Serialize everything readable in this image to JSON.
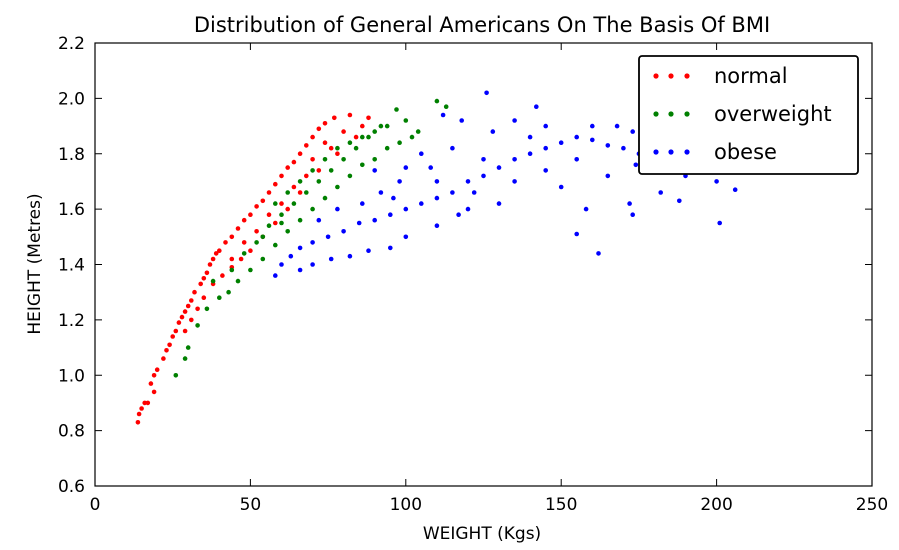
{
  "chart_data": {
    "type": "scatter",
    "title": "Distribution of General Americans On The Basis Of BMI",
    "xlabel": "WEIGHT (Kgs)",
    "ylabel": "HEIGHT (Metres)",
    "xlim": [
      0,
      250
    ],
    "ylim": [
      0.6,
      2.2
    ],
    "xticks": [
      "0",
      "50",
      "100",
      "150",
      "200",
      "250"
    ],
    "yticks": [
      "0.6",
      "0.8",
      "1.0",
      "1.2",
      "1.4",
      "1.6",
      "1.8",
      "2.0",
      "2.2"
    ],
    "grid": false,
    "legend_position": "top-right",
    "series": [
      {
        "name": "normal",
        "color": "#ff0000",
        "points": [
          [
            13.8,
            0.83
          ],
          [
            14.2,
            0.86
          ],
          [
            15,
            0.88
          ],
          [
            16,
            0.9
          ],
          [
            17,
            0.9
          ],
          [
            19,
            0.94
          ],
          [
            18,
            0.97
          ],
          [
            19,
            1.0
          ],
          [
            20,
            1.02
          ],
          [
            22,
            1.06
          ],
          [
            23,
            1.09
          ],
          [
            24,
            1.11
          ],
          [
            25,
            1.14
          ],
          [
            26,
            1.16
          ],
          [
            27,
            1.19
          ],
          [
            28,
            1.21
          ],
          [
            29,
            1.23
          ],
          [
            30,
            1.25
          ],
          [
            31,
            1.27
          ],
          [
            32,
            1.3
          ],
          [
            34,
            1.33
          ],
          [
            35,
            1.35
          ],
          [
            36,
            1.37
          ],
          [
            37,
            1.4
          ],
          [
            38,
            1.42
          ],
          [
            39,
            1.44
          ],
          [
            40,
            1.45
          ],
          [
            42,
            1.48
          ],
          [
            44,
            1.5
          ],
          [
            46,
            1.53
          ],
          [
            48,
            1.56
          ],
          [
            50,
            1.58
          ],
          [
            52,
            1.61
          ],
          [
            54,
            1.63
          ],
          [
            56,
            1.66
          ],
          [
            58,
            1.69
          ],
          [
            60,
            1.72
          ],
          [
            62,
            1.75
          ],
          [
            64,
            1.77
          ],
          [
            66,
            1.8
          ],
          [
            68,
            1.83
          ],
          [
            70,
            1.86
          ],
          [
            72,
            1.89
          ],
          [
            74,
            1.91
          ],
          [
            77,
            1.93
          ],
          [
            82,
            1.94
          ],
          [
            88,
            1.93
          ],
          [
            84,
            1.86
          ],
          [
            78,
            1.8
          ],
          [
            72,
            1.74
          ],
          [
            66,
            1.66
          ],
          [
            62,
            1.6
          ],
          [
            58,
            1.55
          ],
          [
            54,
            1.5
          ],
          [
            50,
            1.45
          ],
          [
            47,
            1.42
          ],
          [
            44,
            1.39
          ],
          [
            41,
            1.36
          ],
          [
            38,
            1.33
          ],
          [
            35,
            1.28
          ],
          [
            33,
            1.24
          ],
          [
            31,
            1.2
          ],
          [
            29,
            1.16
          ],
          [
            44,
            1.42
          ],
          [
            52,
            1.52
          ],
          [
            60,
            1.62
          ],
          [
            68,
            1.72
          ],
          [
            76,
            1.82
          ],
          [
            80,
            1.88
          ],
          [
            86,
            1.9
          ],
          [
            56,
            1.58
          ],
          [
            64,
            1.68
          ],
          [
            48,
            1.48
          ],
          [
            70,
            1.78
          ],
          [
            74,
            1.84
          ]
        ]
      },
      {
        "name": "overweight",
        "color": "#008000",
        "points": [
          [
            26,
            1.0
          ],
          [
            29,
            1.06
          ],
          [
            30,
            1.1
          ],
          [
            33,
            1.18
          ],
          [
            36,
            1.24
          ],
          [
            40,
            1.28
          ],
          [
            43,
            1.3
          ],
          [
            46,
            1.34
          ],
          [
            50,
            1.38
          ],
          [
            54,
            1.42
          ],
          [
            58,
            1.47
          ],
          [
            62,
            1.52
          ],
          [
            66,
            1.56
          ],
          [
            70,
            1.6
          ],
          [
            74,
            1.64
          ],
          [
            78,
            1.68
          ],
          [
            82,
            1.72
          ],
          [
            86,
            1.76
          ],
          [
            90,
            1.78
          ],
          [
            94,
            1.82
          ],
          [
            98,
            1.84
          ],
          [
            102,
            1.86
          ],
          [
            104,
            1.88
          ],
          [
            100,
            1.92
          ],
          [
            97,
            1.96
          ],
          [
            110,
            1.99
          ],
          [
            113,
            1.97
          ],
          [
            92,
            1.9
          ],
          [
            88,
            1.86
          ],
          [
            84,
            1.82
          ],
          [
            80,
            1.78
          ],
          [
            76,
            1.74
          ],
          [
            72,
            1.7
          ],
          [
            68,
            1.66
          ],
          [
            64,
            1.62
          ],
          [
            60,
            1.58
          ],
          [
            56,
            1.54
          ],
          [
            52,
            1.48
          ],
          [
            48,
            1.44
          ],
          [
            44,
            1.38
          ],
          [
            38,
            1.34
          ],
          [
            58,
            1.62
          ],
          [
            66,
            1.7
          ],
          [
            74,
            1.78
          ],
          [
            82,
            1.84
          ],
          [
            90,
            1.88
          ],
          [
            62,
            1.66
          ],
          [
            70,
            1.74
          ],
          [
            78,
            1.82
          ],
          [
            86,
            1.86
          ],
          [
            94,
            1.9
          ],
          [
            54,
            1.5
          ],
          [
            60,
            1.55
          ]
        ]
      },
      {
        "name": "obese",
        "color": "#0000ff",
        "points": [
          [
            58,
            1.36
          ],
          [
            60,
            1.4
          ],
          [
            63,
            1.43
          ],
          [
            66,
            1.46
          ],
          [
            70,
            1.48
          ],
          [
            75,
            1.5
          ],
          [
            80,
            1.52
          ],
          [
            85,
            1.55
          ],
          [
            90,
            1.56
          ],
          [
            95,
            1.58
          ],
          [
            100,
            1.6
          ],
          [
            105,
            1.62
          ],
          [
            110,
            1.64
          ],
          [
            115,
            1.66
          ],
          [
            120,
            1.7
          ],
          [
            125,
            1.72
          ],
          [
            130,
            1.75
          ],
          [
            135,
            1.78
          ],
          [
            140,
            1.8
          ],
          [
            145,
            1.82
          ],
          [
            150,
            1.84
          ],
          [
            155,
            1.86
          ],
          [
            160,
            1.85
          ],
          [
            165,
            1.83
          ],
          [
            170,
            1.82
          ],
          [
            175,
            1.8
          ],
          [
            180,
            1.78
          ],
          [
            185,
            1.75
          ],
          [
            190,
            1.72
          ],
          [
            200,
            1.7
          ],
          [
            206,
            1.67
          ],
          [
            201,
            1.55
          ],
          [
            188,
            1.63
          ],
          [
            182,
            1.66
          ],
          [
            173,
            1.58
          ],
          [
            172,
            1.62
          ],
          [
            162,
            1.44
          ],
          [
            155,
            1.51
          ],
          [
            165,
            1.72
          ],
          [
            158,
            1.6
          ],
          [
            150,
            1.68
          ],
          [
            145,
            1.9
          ],
          [
            140,
            1.86
          ],
          [
            135,
            1.92
          ],
          [
            128,
            1.88
          ],
          [
            126,
            2.02
          ],
          [
            118,
            1.92
          ],
          [
            112,
            1.94
          ],
          [
            120,
            1.6
          ],
          [
            130,
            1.62
          ],
          [
            110,
            1.54
          ],
          [
            100,
            1.5
          ],
          [
            95,
            1.46
          ],
          [
            88,
            1.45
          ],
          [
            82,
            1.43
          ],
          [
            76,
            1.42
          ],
          [
            70,
            1.4
          ],
          [
            66,
            1.38
          ],
          [
            105,
            1.8
          ],
          [
            115,
            1.82
          ],
          [
            108,
            1.75
          ],
          [
            98,
            1.7
          ],
          [
            92,
            1.66
          ],
          [
            86,
            1.62
          ],
          [
            78,
            1.6
          ],
          [
            72,
            1.56
          ],
          [
            125,
            1.78
          ],
          [
            135,
            1.7
          ],
          [
            145,
            1.74
          ],
          [
            155,
            1.78
          ],
          [
            168,
            1.9
          ],
          [
            173,
            1.88
          ],
          [
            180,
            1.84
          ],
          [
            174,
            1.76
          ],
          [
            160,
            1.9
          ],
          [
            142,
            1.97
          ],
          [
            117,
            1.58
          ],
          [
            122,
            1.66
          ],
          [
            100,
            1.75
          ],
          [
            110,
            1.7
          ],
          [
            90,
            1.74
          ],
          [
            96,
            1.64
          ]
        ]
      }
    ]
  }
}
